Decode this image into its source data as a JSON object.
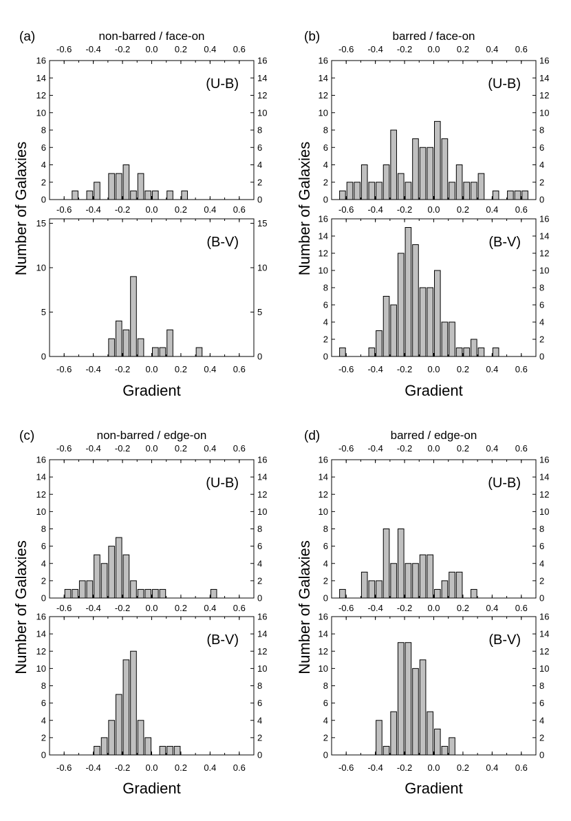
{
  "chart_data": [
    {
      "id": "a",
      "tag": "(a)",
      "title": "non-barred / face-on",
      "type": "bar",
      "xlabel": "Gradient",
      "ylabel": "Number of Galaxies",
      "xlim": [
        -0.7,
        0.7
      ],
      "x_ticks": [
        "-0.6",
        "-0.4",
        "-0.2",
        "0.0",
        "0.2",
        "0.4",
        "0.6"
      ],
      "subplots": [
        {
          "band": "(U-B)",
          "ylim": [
            0,
            16
          ],
          "y_ticks": [
            "0",
            "2",
            "4",
            "6",
            "8",
            "10",
            "12",
            "14",
            "16"
          ],
          "x": [
            -0.525,
            -0.425,
            -0.375,
            -0.275,
            -0.225,
            -0.175,
            -0.125,
            -0.075,
            -0.025,
            0.025,
            0.125,
            0.225
          ],
          "values": [
            1,
            1,
            2,
            3,
            3,
            4,
            1,
            3,
            1,
            1,
            1,
            1
          ]
        },
        {
          "band": "(B-V)",
          "ylim": [
            0,
            15.5
          ],
          "y_ticks": [
            "0",
            "5",
            "10",
            "15"
          ],
          "x": [
            -0.275,
            -0.225,
            -0.175,
            -0.125,
            -0.075,
            0.025,
            0.075,
            0.125,
            0.325
          ],
          "values": [
            2,
            4,
            3,
            9,
            2,
            1,
            1,
            3,
            1
          ]
        }
      ]
    },
    {
      "id": "b",
      "tag": "(b)",
      "title": "barred / face-on",
      "type": "bar",
      "xlabel": "Gradient",
      "ylabel": "Number of Galaxies",
      "xlim": [
        -0.7,
        0.7
      ],
      "x_ticks": [
        "-0.6",
        "-0.4",
        "-0.2",
        "0.0",
        "0.2",
        "0.4",
        "0.6"
      ],
      "subplots": [
        {
          "band": "(U-B)",
          "ylim": [
            0,
            16
          ],
          "y_ticks": [
            "0",
            "2",
            "4",
            "6",
            "8",
            "10",
            "12",
            "14",
            "16"
          ],
          "x": [
            -0.625,
            -0.575,
            -0.525,
            -0.475,
            -0.425,
            -0.375,
            -0.325,
            -0.275,
            -0.225,
            -0.175,
            -0.125,
            -0.075,
            -0.025,
            0.025,
            0.075,
            0.125,
            0.175,
            0.225,
            0.275,
            0.325,
            0.425,
            0.525,
            0.575,
            0.625
          ],
          "values": [
            1,
            2,
            2,
            4,
            2,
            2,
            4,
            8,
            3,
            2,
            7,
            6,
            6,
            9,
            7,
            2,
            4,
            2,
            2,
            3,
            1,
            1,
            1,
            1
          ]
        },
        {
          "band": "(B-V)",
          "ylim": [
            0,
            16
          ],
          "y_ticks": [
            "0",
            "2",
            "4",
            "6",
            "8",
            "10",
            "12",
            "14",
            "16"
          ],
          "x": [
            -0.625,
            -0.425,
            -0.375,
            -0.325,
            -0.275,
            -0.225,
            -0.175,
            -0.125,
            -0.075,
            -0.025,
            0.025,
            0.075,
            0.125,
            0.175,
            0.225,
            0.275,
            0.325,
            0.425
          ],
          "values": [
            1,
            1,
            3,
            7,
            6,
            12,
            15,
            13,
            8,
            8,
            10,
            4,
            4,
            1,
            1,
            2,
            1,
            1
          ]
        }
      ]
    },
    {
      "id": "c",
      "tag": "(c)",
      "title": "non-barred / edge-on",
      "type": "bar",
      "xlabel": "Gradient",
      "ylabel": "Number of Galaxies",
      "xlim": [
        -0.7,
        0.7
      ],
      "x_ticks": [
        "-0.6",
        "-0.4",
        "-0.2",
        "0.0",
        "0.2",
        "0.4",
        "0.6"
      ],
      "subplots": [
        {
          "band": "(U-B)",
          "ylim": [
            0,
            16
          ],
          "y_ticks": [
            "0",
            "2",
            "4",
            "6",
            "8",
            "10",
            "12",
            "14",
            "16"
          ],
          "x": [
            -0.575,
            -0.525,
            -0.475,
            -0.425,
            -0.375,
            -0.325,
            -0.275,
            -0.225,
            -0.175,
            -0.125,
            -0.075,
            -0.025,
            0.025,
            0.075,
            0.425
          ],
          "values": [
            1,
            1,
            2,
            2,
            5,
            4,
            6,
            7,
            5,
            2,
            1,
            1,
            1,
            1,
            1
          ]
        },
        {
          "band": "(B-V)",
          "ylim": [
            0,
            16
          ],
          "y_ticks": [
            "0",
            "2",
            "4",
            "6",
            "8",
            "10",
            "12",
            "14",
            "16"
          ],
          "x": [
            -0.375,
            -0.325,
            -0.275,
            -0.225,
            -0.175,
            -0.125,
            -0.075,
            -0.025,
            0.075,
            0.125,
            0.175
          ],
          "values": [
            1,
            2,
            4,
            7,
            11,
            12,
            4,
            2,
            1,
            1,
            1
          ]
        }
      ]
    },
    {
      "id": "d",
      "tag": "(d)",
      "title": "barred / edge-on",
      "type": "bar",
      "xlabel": "Gradient",
      "ylabel": "Number of Galaxies",
      "xlim": [
        -0.7,
        0.7
      ],
      "x_ticks": [
        "-0.6",
        "-0.4",
        "-0.2",
        "0.0",
        "0.2",
        "0.4",
        "0.6"
      ],
      "subplots": [
        {
          "band": "(U-B)",
          "ylim": [
            0,
            16
          ],
          "y_ticks": [
            "0",
            "2",
            "4",
            "6",
            "8",
            "10",
            "12",
            "14",
            "16"
          ],
          "x": [
            -0.625,
            -0.475,
            -0.425,
            -0.375,
            -0.325,
            -0.275,
            -0.225,
            -0.175,
            -0.125,
            -0.075,
            -0.025,
            0.025,
            0.075,
            0.125,
            0.175,
            0.275
          ],
          "values": [
            1,
            3,
            2,
            2,
            8,
            4,
            8,
            4,
            4,
            5,
            5,
            1,
            2,
            3,
            3,
            1
          ]
        },
        {
          "band": "(B-V)",
          "ylim": [
            0,
            16
          ],
          "y_ticks": [
            "0",
            "2",
            "4",
            "6",
            "8",
            "10",
            "12",
            "14",
            "16"
          ],
          "x": [
            -0.375,
            -0.325,
            -0.275,
            -0.225,
            -0.175,
            -0.125,
            -0.075,
            -0.025,
            0.025,
            0.075,
            0.125
          ],
          "values": [
            4,
            1,
            5,
            13,
            13,
            10,
            11,
            5,
            3,
            1,
            2
          ]
        }
      ]
    }
  ],
  "colors": {
    "bar_fill": "#c0c0c0",
    "bar_stroke": "#000000",
    "axis": "#000000"
  }
}
